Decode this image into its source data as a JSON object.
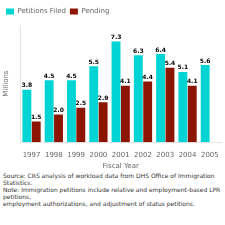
{
  "chart_data": {
    "type": "bar",
    "categories": [
      "1997",
      "1998",
      "1999",
      "2000",
      "2001",
      "2002",
      "2003",
      "2004",
      "2005"
    ],
    "series": [
      {
        "name": "Petitions Filed",
        "color": "#00D4D4",
        "values": [
          3.8,
          4.5,
          4.5,
          5.5,
          7.3,
          6.3,
          6.4,
          5.1,
          5.6
        ]
      },
      {
        "name": "Pending",
        "color": "#8B1500",
        "values": [
          1.5,
          2.0,
          2.5,
          2.9,
          4.1,
          4.4,
          5.4,
          4.1,
          null
        ],
        "value_labels": [
          "1.5",
          "2.0",
          "2.5",
          "2.9",
          "4.1",
          "4.4",
          "5.4",
          "4.1",
          null
        ]
      }
    ],
    "xlabel": "Fiscal Year",
    "ylabel": "Millions",
    "ylim": [
      0,
      8.5
    ],
    "tick_labels": "x",
    "grid": false,
    "legend": "upper left",
    "data_labels": true,
    "annotations": [
      "Source: CRS analysis of workload data from DHS Office of Immigration Statistics.",
      "Note: Immigration petitions include relative and employment-based LPR petitions,",
      "employment authorizations, and adjustment of status petitions."
    ]
  }
}
